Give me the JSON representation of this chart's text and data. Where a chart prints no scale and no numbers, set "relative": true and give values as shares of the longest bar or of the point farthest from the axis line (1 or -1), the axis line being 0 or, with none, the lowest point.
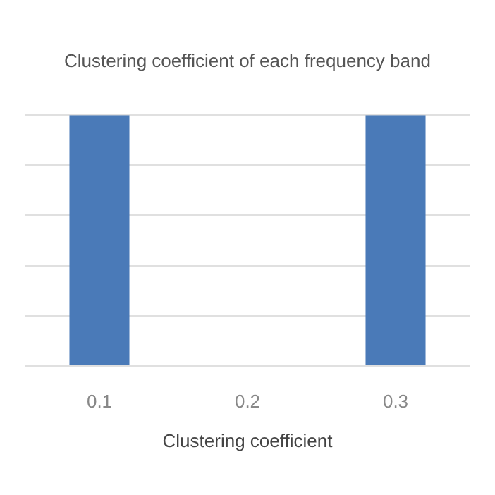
{
  "chart_data": {
    "type": "bar",
    "title": "Clustering coefficient of each frequency band",
    "xlabel": "Clustering coefficient",
    "categories": [
      "0.1",
      "0.2",
      "0.3"
    ],
    "values": [
      1,
      0,
      1
    ],
    "color": "#4a7ab8",
    "relative": true,
    "grid": "y",
    "legend": false
  }
}
